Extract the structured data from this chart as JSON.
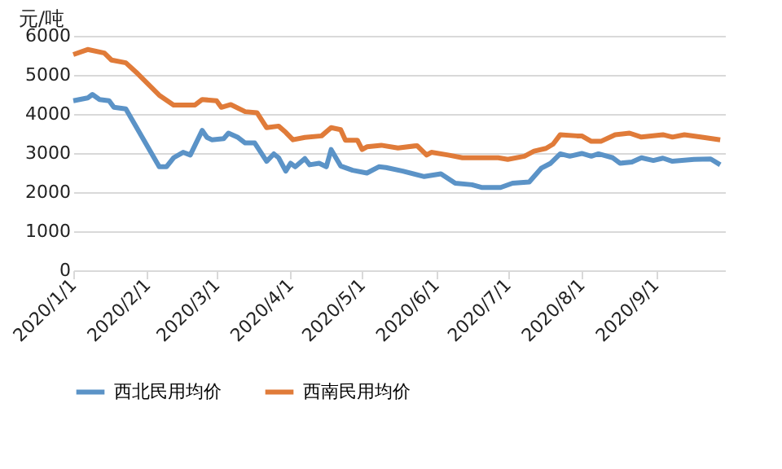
{
  "chart_data": {
    "type": "line",
    "ylabel": "元/吨",
    "xlim": [
      "2020-01-01",
      "2020-09-30"
    ],
    "xticks": [
      {
        "value": "2020-01-01",
        "label": "2020/1/1"
      },
      {
        "value": "2020-02-01",
        "label": "2020/2/1"
      },
      {
        "value": "2020-03-01",
        "label": "2020/3/1"
      },
      {
        "value": "2020-04-01",
        "label": "2020/4/1"
      },
      {
        "value": "2020-05-01",
        "label": "2020/5/1"
      },
      {
        "value": "2020-06-01",
        "label": "2020/6/1"
      },
      {
        "value": "2020-07-01",
        "label": "2020/7/1"
      },
      {
        "value": "2020-08-01",
        "label": "2020/8/1"
      },
      {
        "value": "2020-09-01",
        "label": "2020/9/1"
      }
    ],
    "ylim": [
      0,
      6000
    ],
    "yticks": [
      0,
      1000,
      2000,
      3000,
      4000,
      5000,
      6000
    ],
    "grid": "y",
    "legend": "bottom",
    "marker": "none",
    "line_style": "solid",
    "series": [
      {
        "name": "西北民用均价",
        "color": "#5b93c7",
        "x": [
          "2020-01-01",
          "2020-01-07",
          "2020-01-09",
          "2020-01-12",
          "2020-01-16",
          "2020-01-18",
          "2020-01-23",
          "2020-02-06",
          "2020-02-09",
          "2020-02-12",
          "2020-02-16",
          "2020-02-19",
          "2020-02-24",
          "2020-02-26",
          "2020-02-28",
          "2020-03-04",
          "2020-03-06",
          "2020-03-10",
          "2020-03-13",
          "2020-03-17",
          "2020-03-22",
          "2020-03-25",
          "2020-03-27",
          "2020-03-30",
          "2020-04-01",
          "2020-04-03",
          "2020-04-07",
          "2020-04-09",
          "2020-04-13",
          "2020-04-16",
          "2020-04-18",
          "2020-04-22",
          "2020-04-27",
          "2020-05-03",
          "2020-05-08",
          "2020-05-11",
          "2020-05-18",
          "2020-05-27",
          "2020-06-03",
          "2020-06-09",
          "2020-06-16",
          "2020-06-20",
          "2020-06-28",
          "2020-07-03",
          "2020-07-10",
          "2020-07-15",
          "2020-07-19",
          "2020-07-23",
          "2020-07-27",
          "2020-08-01",
          "2020-08-05",
          "2020-08-08",
          "2020-08-14",
          "2020-08-17",
          "2020-08-22",
          "2020-08-26",
          "2020-08-31",
          "2020-09-04",
          "2020-09-08",
          "2020-09-17",
          "2020-09-24",
          "2020-09-28"
        ],
        "values": [
          4340,
          4410,
          4500,
          4370,
          4340,
          4170,
          4130,
          2650,
          2650,
          2880,
          3020,
          2950,
          3580,
          3400,
          3340,
          3370,
          3510,
          3400,
          3260,
          3260,
          2790,
          2980,
          2880,
          2540,
          2740,
          2650,
          2860,
          2700,
          2740,
          2650,
          3090,
          2670,
          2560,
          2490,
          2650,
          2630,
          2540,
          2400,
          2470,
          2230,
          2190,
          2120,
          2120,
          2230,
          2260,
          2610,
          2740,
          2980,
          2920,
          2990,
          2920,
          2980,
          2880,
          2740,
          2770,
          2880,
          2810,
          2870,
          2790,
          2840,
          2850,
          2700
        ]
      },
      {
        "name": "西南民用均价",
        "color": "#e07b39",
        "x": [
          "2020-01-01",
          "2020-01-07",
          "2020-01-14",
          "2020-01-17",
          "2020-01-23",
          "2020-01-28",
          "2020-02-06",
          "2020-02-12",
          "2020-02-21",
          "2020-02-24",
          "2020-03-01",
          "2020-03-03",
          "2020-03-07",
          "2020-03-13",
          "2020-03-18",
          "2020-03-22",
          "2020-03-27",
          "2020-03-30",
          "2020-04-02",
          "2020-04-07",
          "2020-04-14",
          "2020-04-18",
          "2020-04-22",
          "2020-04-24",
          "2020-04-29",
          "2020-05-01",
          "2020-05-03",
          "2020-05-09",
          "2020-05-16",
          "2020-05-24",
          "2020-05-28",
          "2020-05-30",
          "2020-06-06",
          "2020-06-12",
          "2020-06-27",
          "2020-07-01",
          "2020-07-08",
          "2020-07-12",
          "2020-07-17",
          "2020-07-20",
          "2020-07-23",
          "2020-07-30",
          "2020-08-01",
          "2020-08-05",
          "2020-08-09",
          "2020-08-15",
          "2020-08-21",
          "2020-08-26",
          "2020-09-04",
          "2020-09-08",
          "2020-09-13",
          "2020-09-21",
          "2020-09-28"
        ],
        "values": [
          5520,
          5650,
          5560,
          5380,
          5310,
          5030,
          4480,
          4230,
          4230,
          4370,
          4340,
          4170,
          4240,
          4060,
          4030,
          3650,
          3690,
          3530,
          3340,
          3400,
          3440,
          3650,
          3600,
          3330,
          3330,
          3090,
          3160,
          3200,
          3130,
          3190,
          2950,
          3020,
          2950,
          2880,
          2880,
          2840,
          2920,
          3050,
          3120,
          3230,
          3470,
          3440,
          3440,
          3300,
          3300,
          3470,
          3510,
          3410,
          3470,
          3410,
          3470,
          3400,
          3340
        ]
      }
    ]
  }
}
